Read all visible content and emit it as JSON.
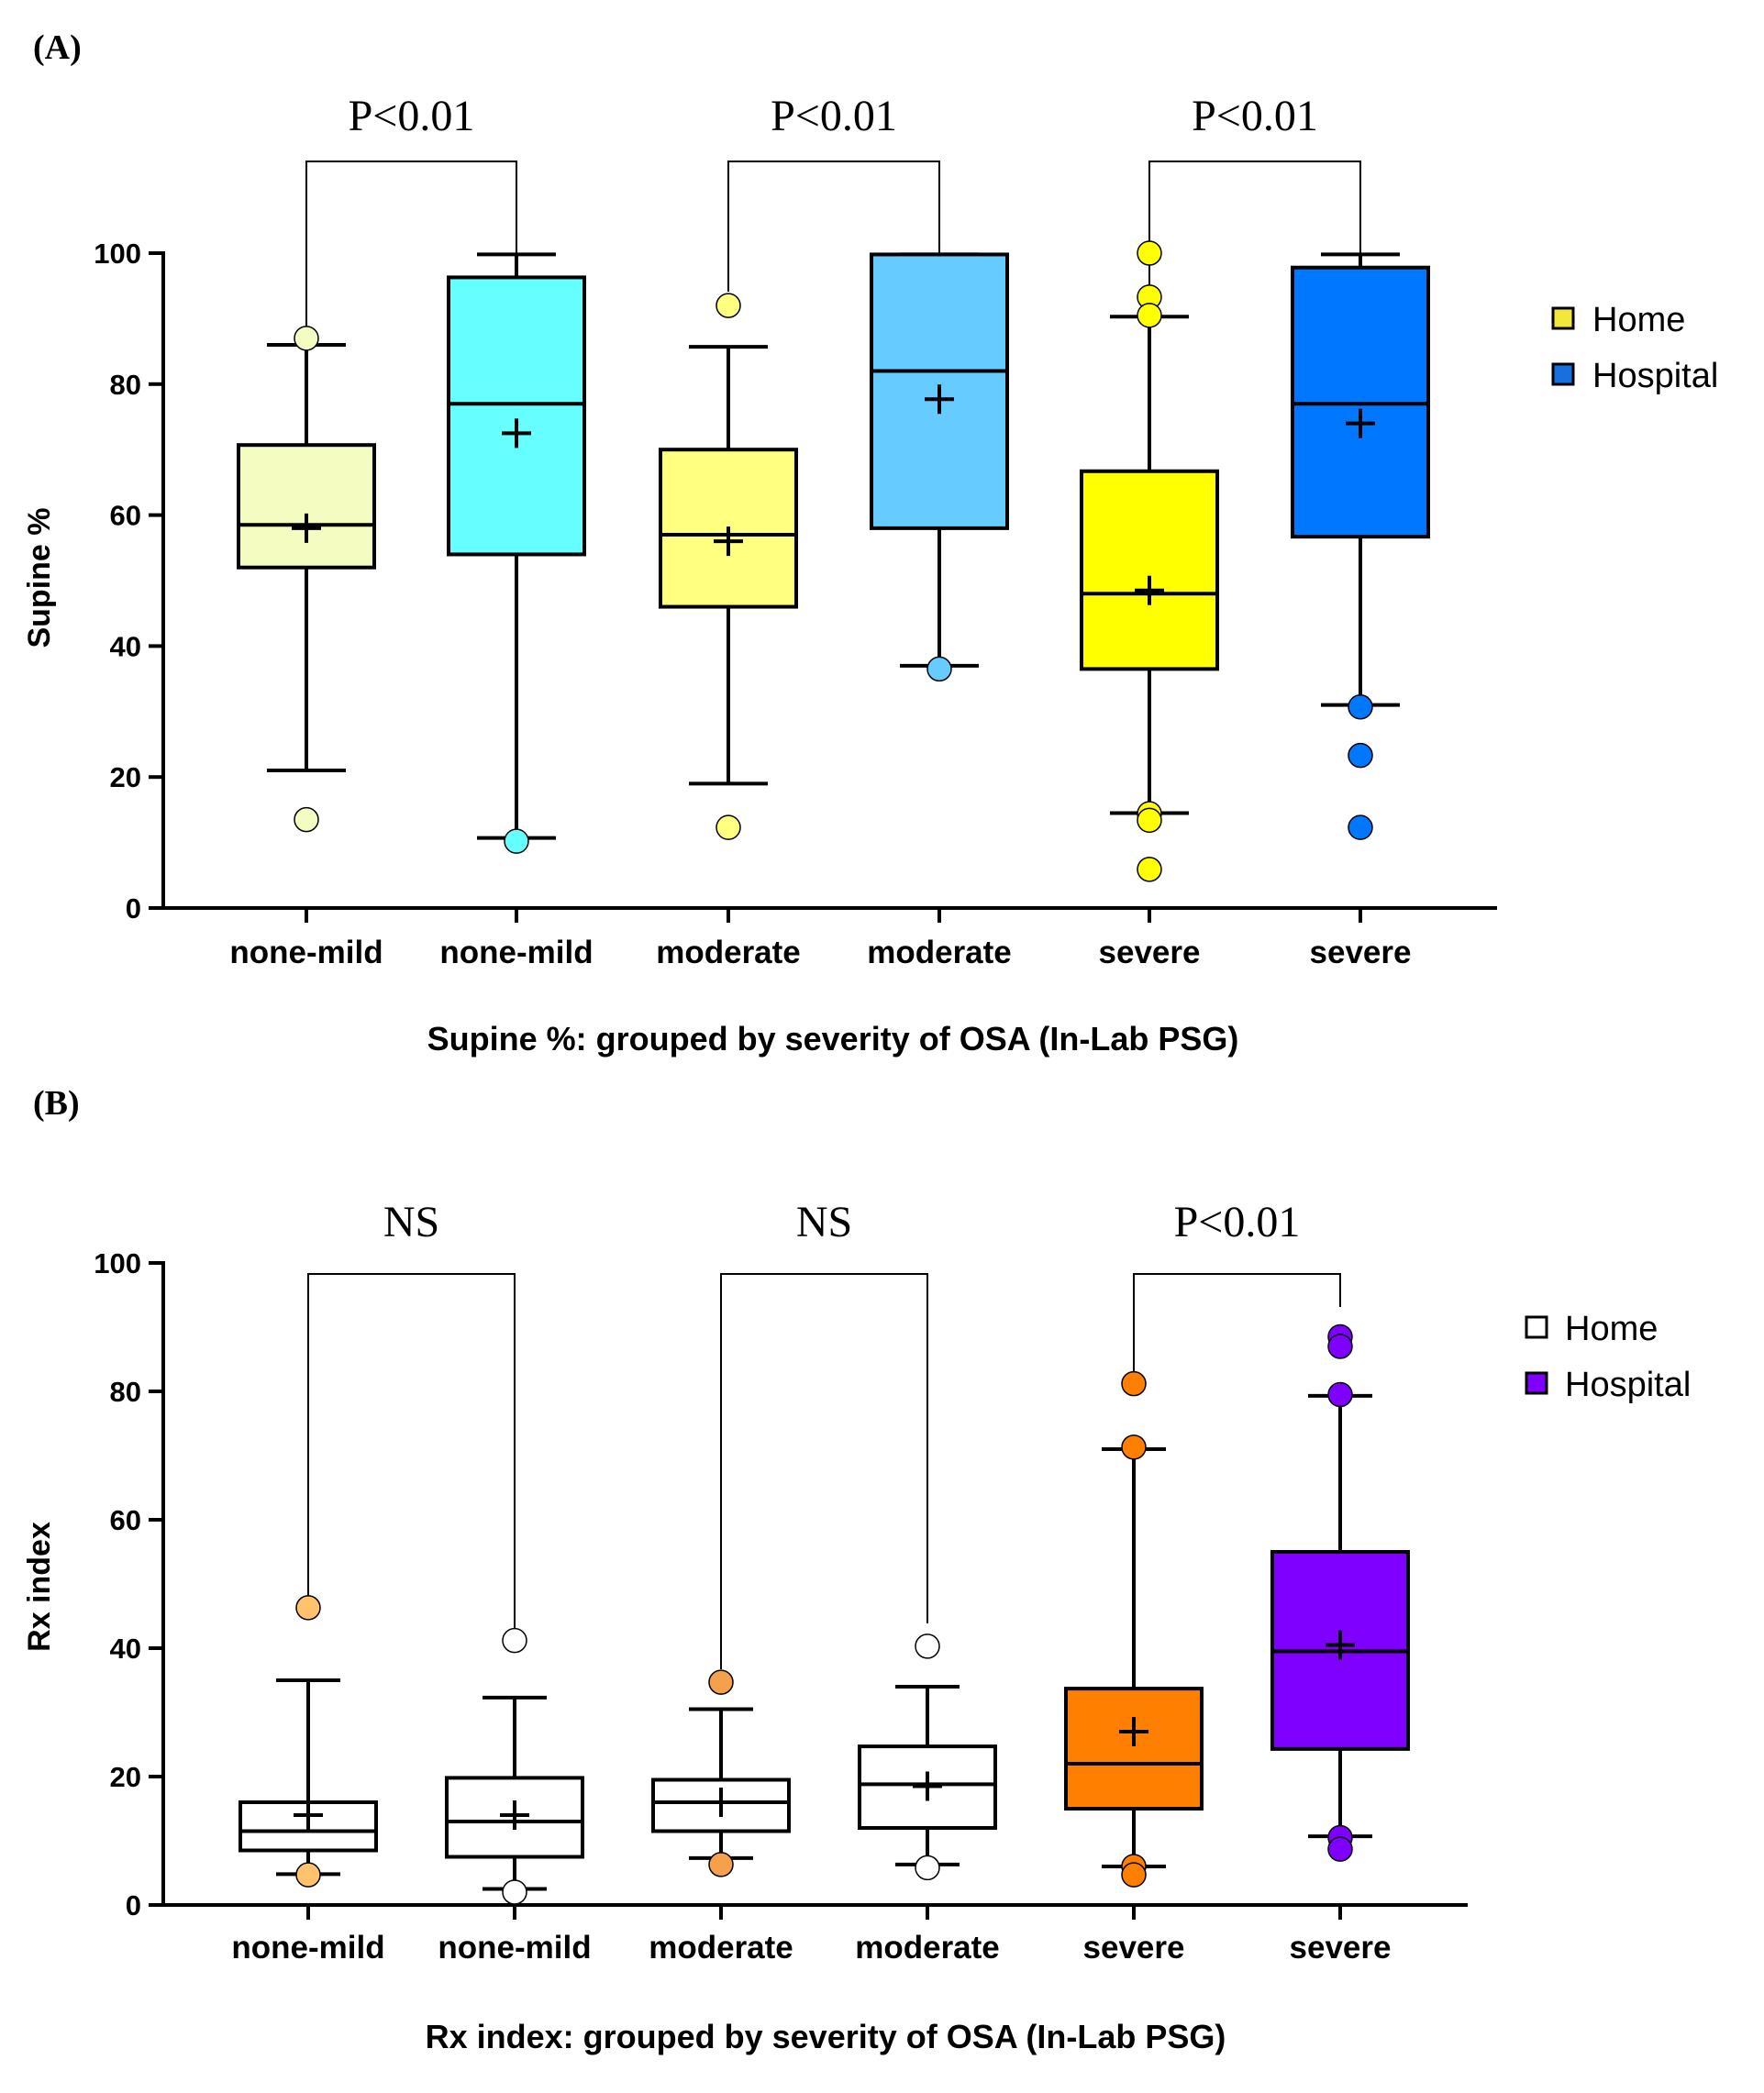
{
  "chart_data": [
    {
      "type": "box",
      "panel_label": "(A)",
      "title": "",
      "xlabel": "Supine %: grouped by severity of OSA (In-Lab PSG)",
      "ylabel": "Supine %",
      "ylim": [
        0,
        100
      ],
      "yticks": [
        0,
        20,
        40,
        60,
        80,
        100
      ],
      "legend": {
        "position": "top-right",
        "entries": [
          {
            "name": "Home",
            "color": "#f2e73a"
          },
          {
            "name": "Hospital",
            "color": "#1a6fe0"
          }
        ]
      },
      "boxes": [
        {
          "category": "none-mild",
          "group": "Home",
          "color": "#f4fcc2",
          "whisker_low": 21,
          "q1": 52,
          "median": 58.5,
          "mean": 58,
          "q3": 70.7,
          "whisker_high": 86,
          "outliers": [
            87,
            13.5
          ]
        },
        {
          "category": "none-mild",
          "group": "Hospital",
          "color": "#66ffff",
          "whisker_low": 10.7,
          "q1": 54,
          "median": 77,
          "mean": 72.5,
          "q3": 96.3,
          "whisker_high": 99.8,
          "outliers": [
            10.2
          ]
        },
        {
          "category": "moderate",
          "group": "Home",
          "color": "#ffff80",
          "whisker_low": 19,
          "q1": 46,
          "median": 57,
          "mean": 56,
          "q3": 70,
          "whisker_high": 85.7,
          "outliers": [
            92,
            12.3
          ]
        },
        {
          "category": "moderate",
          "group": "Hospital",
          "color": "#66ccff",
          "whisker_low": 37,
          "q1": 58,
          "median": 82,
          "mean": 77.7,
          "q3": 99.8,
          "whisker_high": 99.8,
          "outliers": [
            36.5
          ]
        },
        {
          "category": "severe",
          "group": "Home",
          "color": "#ffff00",
          "whisker_low": 14.5,
          "q1": 36.5,
          "median": 48,
          "mean": 48.5,
          "q3": 66.7,
          "whisker_high": 90.3,
          "outliers": [
            100,
            93.3,
            90.5,
            14.4,
            13.4,
            5.9
          ]
        },
        {
          "category": "severe",
          "group": "Hospital",
          "color": "#0077ff",
          "whisker_low": 31,
          "q1": 56.7,
          "median": 77,
          "mean": 74,
          "q3": 97.8,
          "whisker_high": 99.8,
          "outliers": [
            30.7,
            23.3,
            12.3
          ]
        }
      ],
      "comparisons": [
        {
          "label": "P<0.01",
          "from": 0,
          "to": 1
        },
        {
          "label": "P<0.01",
          "from": 2,
          "to": 3
        },
        {
          "label": "P<0.01",
          "from": 4,
          "to": 5
        }
      ]
    },
    {
      "type": "box",
      "panel_label": "(B)",
      "title": "",
      "xlabel": "Rx index: grouped by severity of OSA (In-Lab PSG)",
      "ylabel": "Rx index",
      "ylim": [
        0,
        100
      ],
      "yticks": [
        0,
        20,
        40,
        60,
        80,
        100
      ],
      "legend": {
        "position": "top-right",
        "entries": [
          {
            "name": "Home",
            "color": "#ffffff"
          },
          {
            "name": "Hospital",
            "color": "#7f00ff"
          }
        ]
      },
      "boxes": [
        {
          "category": "none-mild",
          "group": "Home",
          "color": "#ffffff",
          "whisker_low": 4.8,
          "q1": 8.5,
          "median": 11.5,
          "mean": 14,
          "q3": 16,
          "whisker_high": 35,
          "outliers": [
            46.3,
            4.7
          ],
          "outlier_color": "#ffc36e"
        },
        {
          "category": "none-mild",
          "group": "Hospital",
          "color": "#ffffff",
          "whisker_low": 2.5,
          "q1": 7.5,
          "median": 13,
          "mean": 14,
          "q3": 19.8,
          "whisker_high": 32.3,
          "outliers": [
            41.2,
            2
          ],
          "outlier_color": "#ffffff"
        },
        {
          "category": "moderate",
          "group": "Home",
          "color": "#ffffff",
          "whisker_low": 7.3,
          "q1": 11.5,
          "median": 16,
          "mean": 16,
          "q3": 19.5,
          "whisker_high": 30.5,
          "outliers": [
            34.7,
            6.3
          ],
          "outlier_color": "#f5a04a"
        },
        {
          "category": "moderate",
          "group": "Hospital",
          "color": "#ffffff",
          "whisker_low": 6.3,
          "q1": 12,
          "median": 18.8,
          "mean": 18.5,
          "q3": 24.7,
          "whisker_high": 34,
          "outliers": [
            40.3,
            5.8
          ],
          "outlier_color": "#ffffff"
        },
        {
          "category": "severe",
          "group": "Home",
          "color": "#ff7f00",
          "whisker_low": 6,
          "q1": 15,
          "median": 22,
          "mean": 27,
          "q3": 33.7,
          "whisker_high": 71,
          "outliers": [
            81.2,
            71.3,
            6,
            4.7
          ],
          "outlier_color": "#ff7f00"
        },
        {
          "category": "severe",
          "group": "Hospital",
          "color": "#7f00ff",
          "whisker_low": 10.7,
          "q1": 24.3,
          "median": 39.5,
          "mean": 40.5,
          "q3": 55,
          "whisker_high": 79.3,
          "outliers": [
            88.5,
            87,
            79.5,
            10.5,
            8.7
          ],
          "outlier_color": "#7f00ff"
        }
      ],
      "comparisons": [
        {
          "label": "NS",
          "from": 0,
          "to": 1
        },
        {
          "label": "NS",
          "from": 2,
          "to": 3
        },
        {
          "label": "P<0.01",
          "from": 4,
          "to": 5
        }
      ]
    }
  ]
}
